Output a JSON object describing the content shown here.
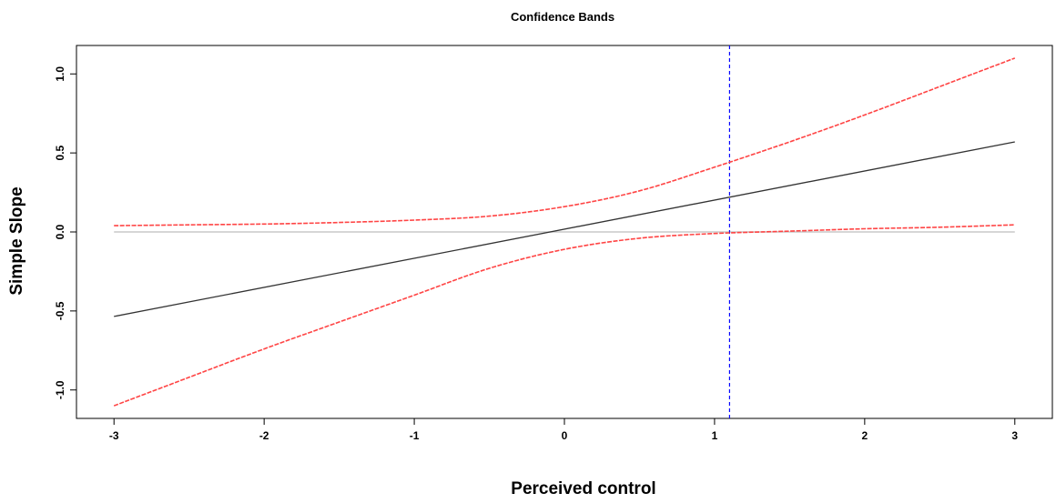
{
  "chart_data": {
    "type": "line",
    "title": "Confidence Bands",
    "xlabel": "Perceived control",
    "ylabel": "Simple Slope",
    "xlim": [
      -3.25,
      3.25
    ],
    "ylim": [
      -1.18,
      1.18
    ],
    "xticks": [
      "-3",
      "-2",
      "-1",
      "0",
      "1",
      "2",
      "3"
    ],
    "yticks": [
      "-1.0",
      "-0.5",
      "0.0",
      "0.5",
      "1.0"
    ],
    "grid": false,
    "legend": "none",
    "reference_lines": [
      {
        "orientation": "horizontal",
        "y": 0,
        "color": "#c8c8c8",
        "style": "solid"
      },
      {
        "orientation": "vertical",
        "x": 1.1,
        "color": "#0000ff",
        "style": "dashed"
      }
    ],
    "series": [
      {
        "role": "estimate",
        "color": "#333333",
        "style": "solid",
        "x": [
          -3,
          3
        ],
        "y": [
          -0.535,
          0.57
        ]
      },
      {
        "role": "upper",
        "color": "#ff4444",
        "style": "dashed",
        "x": [
          -3,
          -2.5,
          -2,
          -1.5,
          -1,
          -0.5,
          0,
          0.5,
          1,
          1.5,
          2,
          2.5,
          3
        ],
        "y": [
          0.04,
          0.045,
          0.05,
          0.06,
          0.075,
          0.1,
          0.16,
          0.26,
          0.41,
          0.57,
          0.74,
          0.92,
          1.1
        ]
      },
      {
        "role": "lower",
        "color": "#ff4444",
        "style": "dashed",
        "x": [
          -3,
          -2.5,
          -2,
          -1.5,
          -1,
          -0.5,
          0,
          0.5,
          1,
          1.5,
          2,
          2.5,
          3
        ],
        "y": [
          -1.1,
          -0.92,
          -0.74,
          -0.57,
          -0.4,
          -0.23,
          -0.11,
          -0.04,
          -0.01,
          0.005,
          0.02,
          0.03,
          0.045
        ]
      }
    ]
  },
  "colors": {
    "estimate": "#333333",
    "band": "#ff4444",
    "zero_line": "#c8c8c8",
    "threshold_line": "#0000ff"
  }
}
